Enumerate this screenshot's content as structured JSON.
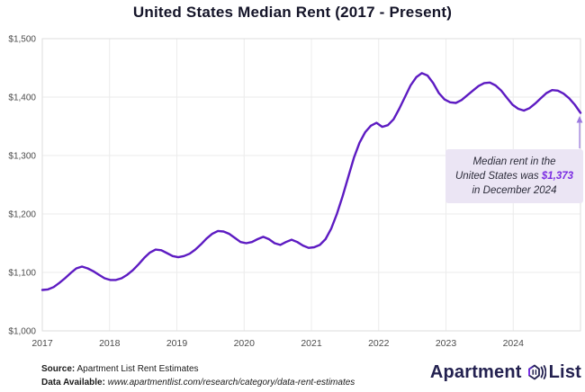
{
  "title": "United States Median Rent (2017 - Present)",
  "chart_data": {
    "type": "line",
    "title": "United States Median Rent (2017 - Present)",
    "x_start": "2017-01",
    "x_end": "2024-12",
    "x_tick_labels": [
      "2017",
      "2018",
      "2019",
      "2020",
      "2021",
      "2022",
      "2023",
      "2024"
    ],
    "y_ticks": [
      1000,
      1100,
      1200,
      1300,
      1400,
      1500
    ],
    "y_tick_labels": [
      "$1,000",
      "$1,100",
      "$1,200",
      "$1,300",
      "$1,400",
      "$1,500"
    ],
    "ylim": [
      1000,
      1500
    ],
    "grid": true,
    "legend": "none",
    "line_color": "#5d1bc2",
    "arrow_color": "#9b79e0",
    "values": [
      1070,
      1071,
      1075,
      1082,
      1090,
      1099,
      1107,
      1110,
      1107,
      1102,
      1096,
      1090,
      1087,
      1087,
      1090,
      1096,
      1104,
      1114,
      1125,
      1134,
      1139,
      1138,
      1133,
      1128,
      1126,
      1128,
      1132,
      1139,
      1148,
      1158,
      1166,
      1171,
      1170,
      1166,
      1159,
      1152,
      1150,
      1152,
      1157,
      1161,
      1157,
      1150,
      1147,
      1152,
      1156,
      1152,
      1146,
      1142,
      1143,
      1147,
      1157,
      1175,
      1200,
      1230,
      1263,
      1296,
      1322,
      1340,
      1351,
      1356,
      1349,
      1352,
      1362,
      1380,
      1400,
      1420,
      1434,
      1441,
      1437,
      1424,
      1407,
      1396,
      1391,
      1390,
      1395,
      1403,
      1411,
      1419,
      1424,
      1425,
      1420,
      1411,
      1399,
      1387,
      1380,
      1377,
      1381,
      1389,
      1398,
      1407,
      1412,
      1411,
      1406,
      1398,
      1387,
      1373
    ],
    "last_point": {
      "label": "December 2024",
      "value": 1373
    }
  },
  "annotation": {
    "line1": "Median rent in the",
    "line2_prefix": "United States was ",
    "highlight": "$1,373",
    "line3": "in December 2024",
    "bg_color": "#ebe5f4",
    "highlight_color": "#7a2be2"
  },
  "footer": {
    "source_label": "Source:",
    "source_text": " Apartment List Rent Estimates",
    "data_label": "Data Available:",
    "data_url": " www.apartmentlist.com/research/category/data-rent-estimates"
  },
  "logo": {
    "word1": "Apartment",
    "word2": "List"
  }
}
